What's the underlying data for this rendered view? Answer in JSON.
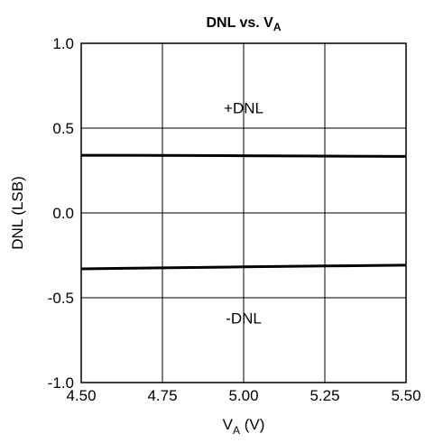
{
  "chart_data": {
    "type": "line",
    "title": "DNL vs. V",
    "title_subscript": "A",
    "xlabel": "V",
    "xlabel_subscript": "A",
    "xlabel_unit": " (V)",
    "ylabel": "DNL (LSB)",
    "xlim": [
      4.5,
      5.5
    ],
    "ylim": [
      -1.0,
      1.0
    ],
    "x_ticks": [
      4.5,
      4.75,
      5.0,
      5.25,
      5.5
    ],
    "x_tick_labels": [
      "4.50",
      "4.75",
      "5.00",
      "5.25",
      "5.50"
    ],
    "y_ticks": [
      1.0,
      0.5,
      0.0,
      -0.5,
      -1.0
    ],
    "y_tick_labels": [
      "1.0",
      "0.5",
      "0.0",
      "-0.5",
      "-1.0"
    ],
    "grid": true,
    "series": [
      {
        "name": "+DNL",
        "x": [
          4.5,
          4.75,
          5.0,
          5.25,
          5.5
        ],
        "y": [
          0.34,
          0.339,
          0.337,
          0.335,
          0.333
        ]
      },
      {
        "name": "-DNL",
        "x": [
          4.5,
          4.75,
          5.0,
          5.25,
          5.5
        ],
        "y": [
          -0.33,
          -0.324,
          -0.318,
          -0.313,
          -0.308
        ]
      }
    ],
    "annotations": [
      {
        "text": "+DNL",
        "x": 5.0,
        "y": 0.62
      },
      {
        "text": "-DNL",
        "x": 5.0,
        "y": -0.62
      }
    ],
    "line_color": "#000000"
  }
}
